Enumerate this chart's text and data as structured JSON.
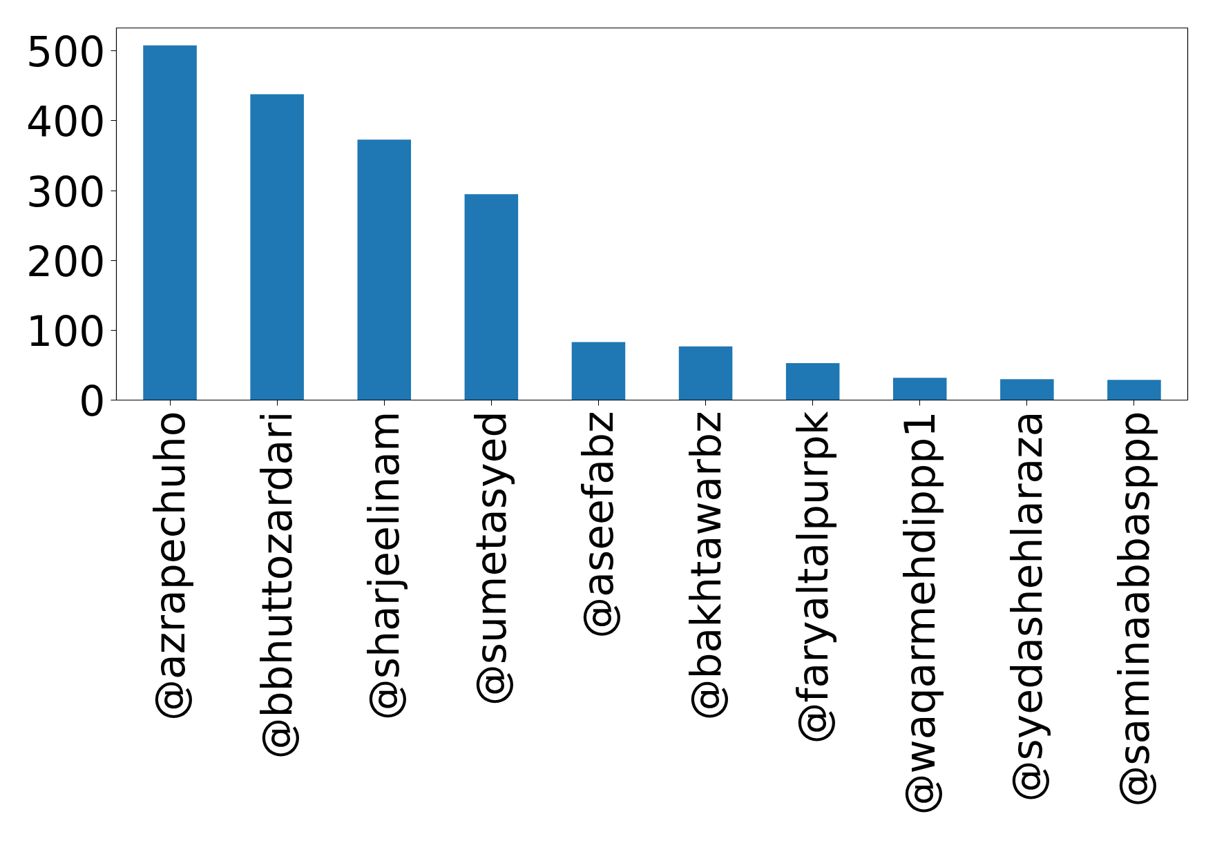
{
  "chart_data": {
    "type": "bar",
    "categories": [
      "@azrapechuho",
      "@bbhuttozardari",
      "@sharjeelinam",
      "@sumetasyed",
      "@aseefabz",
      "@bakhtawarbz",
      "@faryaltalpurpk",
      "@waqarmehdippp1",
      "@syedashehlaraza",
      "@saminaabbasppp"
    ],
    "values": [
      508,
      438,
      373,
      295,
      83,
      77,
      53,
      32,
      30,
      29
    ],
    "color": "#1f77b4",
    "ylim": [
      0,
      533
    ],
    "yticks": [
      0,
      100,
      200,
      300,
      400,
      500
    ],
    "grid": false
  }
}
